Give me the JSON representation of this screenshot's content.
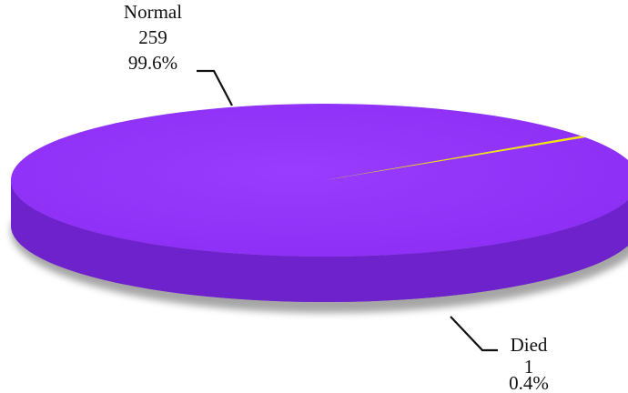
{
  "chart_data": {
    "type": "pie",
    "style": "3d",
    "start_angle_deg": -34,
    "slices": [
      {
        "label": "Normal",
        "value": 259,
        "percent": "99.6%",
        "color": "#9333ff",
        "side_color": "#6e22cc"
      },
      {
        "label": "Died",
        "value": 1,
        "percent": "0.4%",
        "color": "#f2e600",
        "side_color": "#b5a800"
      }
    ]
  }
}
